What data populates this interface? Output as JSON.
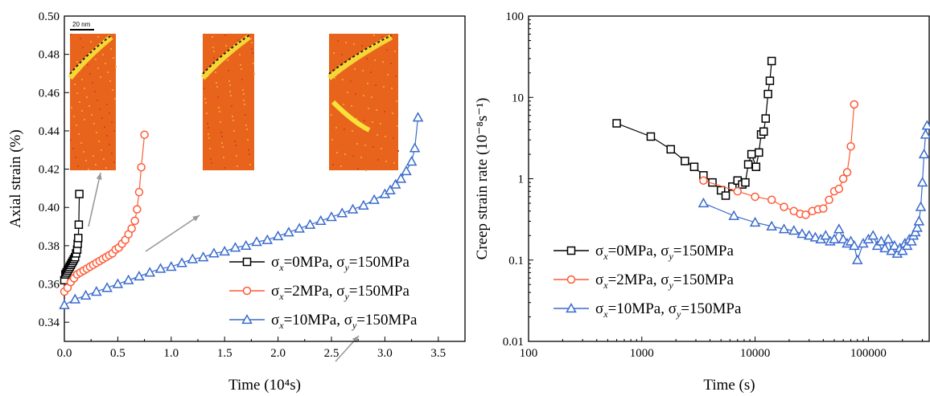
{
  "chart_data": [
    {
      "type": "scatter",
      "xlabel": "Time (10⁴s)",
      "ylabel": "Axial strain (%)",
      "xlim": [
        0,
        3.75
      ],
      "ylim": [
        0.33,
        0.5
      ],
      "xticks": [
        "0.0",
        "0.5",
        "1.0",
        "1.5",
        "2.0",
        "2.5",
        "3.0",
        "3.5"
      ],
      "yticks": [
        "0.34",
        "0.36",
        "0.38",
        "0.40",
        "0.42",
        "0.44",
        "0.46",
        "0.48",
        "0.50"
      ],
      "legend_position": "bottom-right",
      "inset_scale_label": "20 nm",
      "series": [
        {
          "legend": {
            "a": "σ",
            "sub1": "x",
            "b": "=0MPa, σ",
            "sub2": "y",
            "c": "=150MPa"
          },
          "color": "#000000",
          "marker": "square",
          "x": [
            0.0,
            0.01,
            0.02,
            0.03,
            0.04,
            0.05,
            0.06,
            0.07,
            0.08,
            0.09,
            0.1,
            0.11,
            0.12,
            0.125,
            0.13,
            0.135,
            0.14
          ],
          "y": [
            0.362,
            0.365,
            0.366,
            0.367,
            0.368,
            0.369,
            0.37,
            0.371,
            0.372,
            0.373,
            0.374,
            0.376,
            0.378,
            0.381,
            0.384,
            0.391,
            0.407
          ]
        },
        {
          "legend": {
            "a": "σ",
            "sub1": "x",
            "b": "=2MPa, σ",
            "sub2": "y",
            "c": "=150MPa"
          },
          "color": "#ff5a36",
          "marker": "circle",
          "x": [
            0.0,
            0.03,
            0.06,
            0.09,
            0.12,
            0.15,
            0.18,
            0.21,
            0.24,
            0.27,
            0.3,
            0.33,
            0.36,
            0.39,
            0.42,
            0.45,
            0.48,
            0.51,
            0.54,
            0.57,
            0.6,
            0.63,
            0.66,
            0.68,
            0.7,
            0.72,
            0.75
          ],
          "y": [
            0.356,
            0.358,
            0.361,
            0.363,
            0.365,
            0.366,
            0.367,
            0.368,
            0.369,
            0.37,
            0.371,
            0.372,
            0.373,
            0.374,
            0.375,
            0.376,
            0.378,
            0.379,
            0.381,
            0.383,
            0.386,
            0.389,
            0.393,
            0.399,
            0.408,
            0.421,
            0.438
          ]
        },
        {
          "legend": {
            "a": "σ",
            "sub1": "x",
            "b": "=10MPa, σ",
            "sub2": "y",
            "c": "=150MPa"
          },
          "color": "#3a6bcc",
          "marker": "triangle",
          "x": [
            0.0,
            0.1,
            0.2,
            0.3,
            0.4,
            0.5,
            0.6,
            0.7,
            0.8,
            0.9,
            1.0,
            1.1,
            1.2,
            1.3,
            1.4,
            1.5,
            1.6,
            1.7,
            1.8,
            1.9,
            2.0,
            2.1,
            2.2,
            2.3,
            2.4,
            2.5,
            2.6,
            2.7,
            2.8,
            2.9,
            3.0,
            3.05,
            3.1,
            3.15,
            3.2,
            3.25,
            3.28,
            3.31
          ],
          "y": [
            0.349,
            0.352,
            0.354,
            0.356,
            0.358,
            0.36,
            0.362,
            0.364,
            0.366,
            0.368,
            0.369,
            0.371,
            0.373,
            0.374,
            0.376,
            0.377,
            0.379,
            0.38,
            0.382,
            0.383,
            0.385,
            0.387,
            0.389,
            0.391,
            0.393,
            0.395,
            0.397,
            0.399,
            0.401,
            0.404,
            0.407,
            0.409,
            0.412,
            0.415,
            0.419,
            0.424,
            0.431,
            0.447
          ]
        }
      ]
    },
    {
      "type": "line",
      "xlabel": "Time (s)",
      "ylabel": "Creep strain rate (10⁻⁸s⁻¹)",
      "xscale": "log",
      "yscale": "log",
      "xlim": [
        100,
        350000
      ],
      "ylim": [
        0.01,
        100
      ],
      "xticks": [
        "100",
        "1000",
        "10000",
        "100000"
      ],
      "yticks": [
        "0.01",
        "0.1",
        "1",
        "10",
        "100"
      ],
      "legend_position": "middle-left",
      "series": [
        {
          "legend": {
            "a": "σ",
            "sub1": "x",
            "b": "=0MPa, σ",
            "sub2": "y",
            "c": "=150MPa"
          },
          "color": "#000000",
          "marker": "square",
          "x": [
            600,
            1200,
            1800,
            2400,
            2900,
            3500,
            4200,
            5000,
            5500,
            6300,
            7000,
            7700,
            8200,
            8700,
            9300,
            10200,
            10800,
            11300,
            11900,
            12400,
            13000,
            13500,
            14000
          ],
          "y": [
            4.8,
            3.3,
            2.3,
            1.65,
            1.4,
            1.1,
            0.9,
            0.72,
            0.62,
            0.8,
            0.95,
            0.85,
            0.9,
            1.5,
            2.0,
            1.4,
            2.1,
            3.5,
            3.8,
            5.5,
            11,
            16,
            28
          ]
        },
        {
          "legend": {
            "a": "σ",
            "sub1": "x",
            "b": "=2MPa, σ",
            "sub2": "y",
            "c": "=150MPa"
          },
          "color": "#ff5a36",
          "marker": "circle",
          "x": [
            3500,
            7000,
            10000,
            14000,
            18000,
            22000,
            25000,
            28000,
            32000,
            36000,
            40000,
            45000,
            50000,
            55000,
            60000,
            65000,
            70000,
            75000
          ],
          "y": [
            0.95,
            0.7,
            0.6,
            0.55,
            0.45,
            0.4,
            0.37,
            0.36,
            0.4,
            0.42,
            0.43,
            0.55,
            0.7,
            0.75,
            1.0,
            1.2,
            2.5,
            8.2
          ]
        },
        {
          "legend": {
            "a": "σ",
            "sub1": "x",
            "b": "=10MPa, σ",
            "sub2": "y",
            "c": "=150MPa"
          },
          "color": "#3a6bcc",
          "marker": "triangle",
          "x": [
            3500,
            6500,
            10000,
            14000,
            18000,
            22000,
            26000,
            30000,
            34000,
            38000,
            42000,
            46000,
            50000,
            55000,
            60000,
            65000,
            70000,
            75000,
            80000,
            90000,
            100000,
            110000,
            120000,
            130000,
            140000,
            150000,
            160000,
            170000,
            180000,
            190000,
            200000,
            210000,
            220000,
            230000,
            240000,
            250000,
            260000,
            270000,
            280000,
            290000,
            300000,
            310000,
            320000,
            330000
          ],
          "y": [
            0.5,
            0.35,
            0.29,
            0.26,
            0.24,
            0.23,
            0.21,
            0.2,
            0.19,
            0.18,
            0.2,
            0.17,
            0.18,
            0.24,
            0.18,
            0.16,
            0.17,
            0.15,
            0.1,
            0.16,
            0.18,
            0.2,
            0.15,
            0.17,
            0.14,
            0.18,
            0.13,
            0.15,
            0.12,
            0.14,
            0.13,
            0.16,
            0.15,
            0.18,
            0.17,
            0.2,
            0.22,
            0.25,
            0.3,
            0.45,
            0.9,
            2.0,
            3.5,
            4.5
          ]
        }
      ]
    }
  ]
}
